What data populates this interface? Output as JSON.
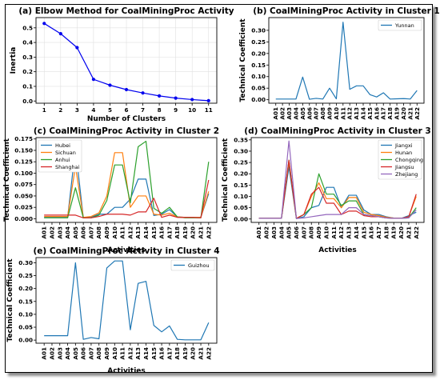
{
  "chart_data": [
    {
      "type": "line",
      "title": "(a) Elbow Method for CoalMiningProc Activity",
      "xlabel": "Number of Clusters",
      "ylabel": "Inertia",
      "x": [
        1,
        2,
        3,
        4,
        5,
        6,
        7,
        8,
        9,
        10,
        11
      ],
      "series": [
        {
          "values": [
            0.53,
            0.46,
            0.365,
            0.148,
            0.108,
            0.078,
            0.055,
            0.035,
            0.02,
            0.01,
            0.002
          ],
          "color": "#0000ee",
          "markers": true
        }
      ],
      "xticks": [
        "1",
        "2",
        "3",
        "4",
        "5",
        "6",
        "7",
        "8",
        "9",
        "10",
        "11"
      ],
      "yticks": [
        "0.0",
        "0.1",
        "0.2",
        "0.3",
        "0.4",
        "0.5"
      ],
      "xlim": [
        0.5,
        11.5
      ],
      "ylim": [
        -0.015,
        0.57
      ],
      "grid": true
    },
    {
      "type": "line",
      "title": "(b) CoalMiningProc Activity in Cluster 1",
      "xlabel": "",
      "ylabel": "Technical Coefficient",
      "categories": [
        "A01",
        "A02",
        "A03",
        "A04",
        "A05",
        "A06",
        "A07",
        "A08",
        "A09",
        "A10",
        "A11",
        "A12",
        "A13",
        "A14",
        "A15",
        "A16",
        "A17",
        "A18",
        "A19",
        "A20",
        "A21",
        "A22"
      ],
      "series": [
        {
          "name": "Yunnan",
          "color": "#1f77b4",
          "values": [
            0.003,
            0.003,
            0.003,
            0.003,
            0.098,
            0.002,
            0.006,
            0.003,
            0.05,
            0.004,
            0.335,
            0.045,
            0.06,
            0.06,
            0.022,
            0.012,
            0.03,
            0.003,
            0.004,
            0.005,
            0.003,
            0.04
          ]
        }
      ],
      "yticks": [
        "0.00",
        "0.05",
        "0.10",
        "0.15",
        "0.20",
        "0.25",
        "0.30"
      ],
      "ylim": [
        -0.015,
        0.355
      ],
      "legend": "top-right"
    },
    {
      "type": "line",
      "title": "(c) CoalMiningProc Activity in Cluster 2",
      "xlabel": "Activities",
      "ylabel": "Technical Coefficient",
      "categories": [
        "A01",
        "A02",
        "A03",
        "A04",
        "A05",
        "A06",
        "A07",
        "A08",
        "A09",
        "A10",
        "A11",
        "A12",
        "A13",
        "A14",
        "A15",
        "A16",
        "A17",
        "A18",
        "A19",
        "A20",
        "A21",
        "A22"
      ],
      "series": [
        {
          "name": "Hubei",
          "color": "#1f77b4",
          "values": [
            0.003,
            0.003,
            0.003,
            0.003,
            0.155,
            0.002,
            0.003,
            0.01,
            0.01,
            0.025,
            0.025,
            0.043,
            0.087,
            0.087,
            0.007,
            0.01,
            0.02,
            0.004,
            0.003,
            0.003,
            0.003,
            0.055
          ]
        },
        {
          "name": "Sichuan",
          "color": "#ff7f0e",
          "values": [
            0.005,
            0.005,
            0.005,
            0.005,
            0.115,
            0.003,
            0.005,
            0.013,
            0.05,
            0.145,
            0.145,
            0.025,
            0.05,
            0.05,
            0.01,
            0.008,
            0.012,
            0.004,
            0.003,
            0.003,
            0.003,
            0.06
          ]
        },
        {
          "name": "Anhui",
          "color": "#2ca02c",
          "values": [
            0.002,
            0.002,
            0.002,
            0.002,
            0.068,
            0.002,
            0.002,
            0.008,
            0.04,
            0.118,
            0.118,
            0.035,
            0.158,
            0.17,
            0.023,
            0.012,
            0.025,
            0.004,
            0.002,
            0.002,
            0.002,
            0.125
          ]
        },
        {
          "name": "Shanghai",
          "color": "#d62728",
          "values": [
            0.008,
            0.008,
            0.008,
            0.008,
            0.008,
            0.002,
            0.002,
            0.005,
            0.01,
            0.01,
            0.01,
            0.008,
            0.015,
            0.015,
            0.045,
            0.003,
            0.008,
            0.003,
            0.003,
            0.003,
            0.002,
            0.085
          ]
        }
      ],
      "yticks": [
        "0.000",
        "0.025",
        "0.050",
        "0.075",
        "0.100",
        "0.125",
        "0.150",
        "0.175"
      ],
      "ylim": [
        -0.008,
        0.178
      ],
      "legend": "top-left"
    },
    {
      "type": "line",
      "title": "(d) CoalMiningProc Activity in Cluster 3",
      "xlabel": "Activities",
      "ylabel": "Technical Coefficient",
      "categories": [
        "A01",
        "A02",
        "A03",
        "A04",
        "A05",
        "A06",
        "A07",
        "A08",
        "A09",
        "A10",
        "A11",
        "A12",
        "A13",
        "A14",
        "A15",
        "A16",
        "A17",
        "A18",
        "A19",
        "A20",
        "A21",
        "A22"
      ],
      "series": [
        {
          "name": "Jiangxi",
          "color": "#1f77b4",
          "values": [
            0.003,
            0.003,
            0.003,
            0.003,
            0.23,
            0.002,
            0.01,
            0.05,
            0.06,
            0.14,
            0.14,
            0.05,
            0.105,
            0.105,
            0.04,
            0.02,
            0.02,
            0.01,
            0.004,
            0.003,
            0.015,
            0.03
          ]
        },
        {
          "name": "Hunan",
          "color": "#ff7f0e",
          "values": [
            0.003,
            0.003,
            0.003,
            0.003,
            0.25,
            0.003,
            0.02,
            0.1,
            0.16,
            0.09,
            0.09,
            0.05,
            0.095,
            0.095,
            0.03,
            0.02,
            0.015,
            0.008,
            0.004,
            0.003,
            0.01,
            0.1
          ]
        },
        {
          "name": "Chongqing",
          "color": "#2ca02c",
          "values": [
            0.003,
            0.003,
            0.003,
            0.003,
            0.26,
            0.002,
            0.02,
            0.05,
            0.2,
            0.11,
            0.11,
            0.06,
            0.08,
            0.08,
            0.02,
            0.015,
            0.01,
            0.005,
            0.003,
            0.003,
            0.005,
            0.05
          ]
        },
        {
          "name": "Jiangsu",
          "color": "#d62728",
          "values": [
            0.003,
            0.003,
            0.003,
            0.003,
            0.26,
            0.003,
            0.02,
            0.11,
            0.14,
            0.07,
            0.07,
            0.02,
            0.035,
            0.035,
            0.015,
            0.01,
            0.01,
            0.005,
            0.003,
            0.003,
            0.01,
            0.11
          ]
        },
        {
          "name": "Zhejiang",
          "color": "#9467bd",
          "values": [
            0.003,
            0.003,
            0.003,
            0.003,
            0.345,
            0.002,
            0.005,
            0.01,
            0.015,
            0.02,
            0.02,
            0.02,
            0.05,
            0.05,
            0.02,
            0.015,
            0.01,
            0.005,
            0.003,
            0.003,
            0.005,
            0.04
          ]
        }
      ],
      "yticks": [
        "0.00",
        "0.05",
        "0.10",
        "0.15",
        "0.20",
        "0.25",
        "0.30",
        "0.35"
      ],
      "ylim": [
        -0.015,
        0.36
      ],
      "legend": "top-right"
    },
    {
      "type": "line",
      "title": "(e) CoalMiningProc Activity in Cluster 4",
      "xlabel": "Activities",
      "ylabel": "Technical Coefficient",
      "categories": [
        "A01",
        "A02",
        "A03",
        "A04",
        "A05",
        "A06",
        "A07",
        "A08",
        "A09",
        "A10",
        "A11",
        "A12",
        "A13",
        "A14",
        "A15",
        "A16",
        "A17",
        "A18",
        "A19",
        "A20",
        "A21",
        "A22"
      ],
      "series": [
        {
          "name": "Guizhou",
          "color": "#1f77b4",
          "values": [
            0.017,
            0.017,
            0.017,
            0.017,
            0.3,
            0.003,
            0.01,
            0.005,
            0.28,
            0.307,
            0.307,
            0.04,
            0.22,
            0.228,
            0.057,
            0.032,
            0.055,
            0.003,
            0.001,
            0.001,
            0.001,
            0.068
          ]
        }
      ],
      "yticks": [
        "0.00",
        "0.05",
        "0.10",
        "0.15",
        "0.20",
        "0.25",
        "0.30"
      ],
      "ylim": [
        -0.012,
        0.32
      ],
      "legend": "top-right"
    }
  ]
}
